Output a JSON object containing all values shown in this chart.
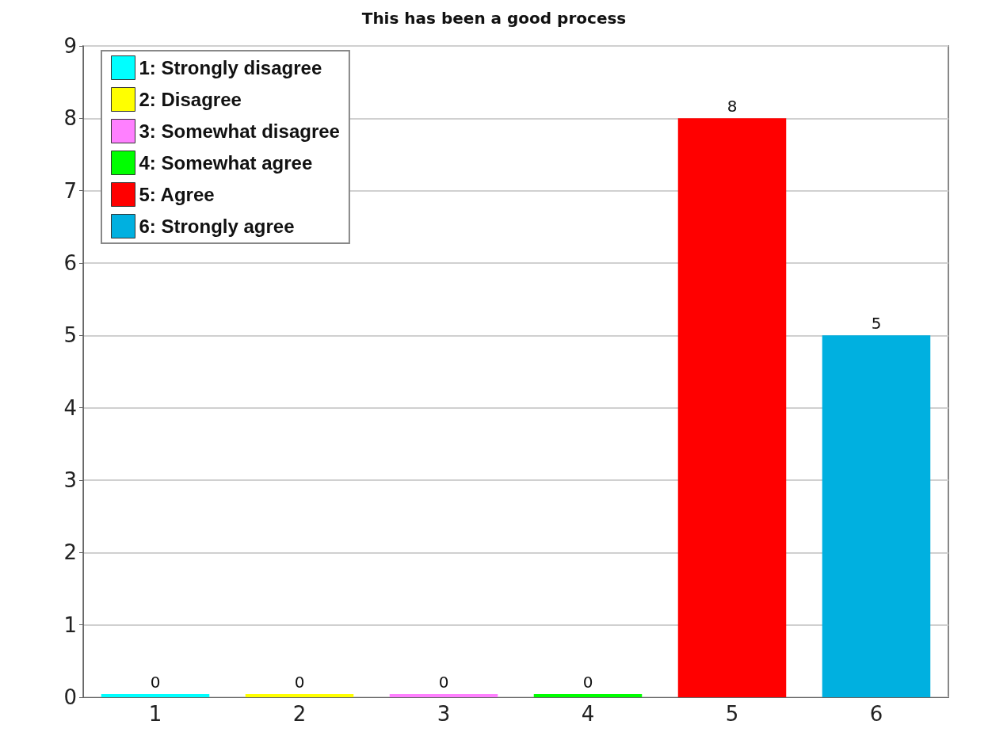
{
  "chart_data": {
    "type": "bar",
    "title": "This has been a good process",
    "categories": [
      "1",
      "2",
      "3",
      "4",
      "5",
      "6"
    ],
    "series": [
      {
        "name": "1: Strongly disagree",
        "color": "#00ffff",
        "values": [
          0,
          null,
          null,
          null,
          null,
          null
        ]
      },
      {
        "name": "2: Disagree",
        "color": "#ffff00",
        "values": [
          null,
          0,
          null,
          null,
          null,
          null
        ]
      },
      {
        "name": "3: Somewhat disagree",
        "color": "#ff80ff",
        "values": [
          null,
          null,
          0,
          null,
          null,
          null
        ]
      },
      {
        "name": "4: Somewhat agree",
        "color": "#00ff00",
        "values": [
          null,
          null,
          null,
          0,
          null,
          null
        ]
      },
      {
        "name": "5: Agree",
        "color": "#ff0000",
        "values": [
          null,
          null,
          null,
          null,
          8,
          null
        ]
      },
      {
        "name": "6: Strongly agree",
        "color": "#00b0e0",
        "values": [
          null,
          null,
          null,
          null,
          null,
          5
        ]
      }
    ],
    "stacked": true,
    "ylim": [
      0,
      9
    ],
    "yticks": [
      0,
      1,
      2,
      3,
      4,
      5,
      6,
      7,
      8,
      9
    ],
    "grid": "y",
    "legend": "top left",
    "data_labels": true
  }
}
